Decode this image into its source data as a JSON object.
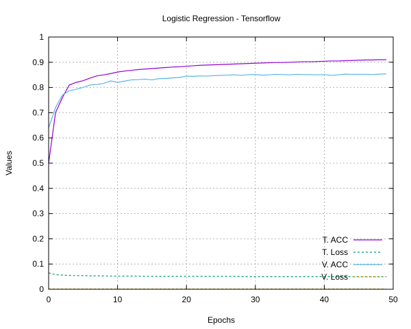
{
  "chart_data": {
    "type": "line",
    "title": "Logistic Regression - Tensorflow",
    "xlabel": "Epochs",
    "ylabel": "Values",
    "xlim": [
      0,
      50
    ],
    "ylim": [
      0,
      1
    ],
    "xticks": [
      0,
      10,
      20,
      30,
      40,
      50
    ],
    "yticks": [
      0,
      0.1,
      0.2,
      0.3,
      0.4,
      0.5,
      0.6,
      0.7,
      0.8,
      0.9,
      1
    ],
    "xtick_labels": [
      "0",
      "10",
      "20",
      "30",
      "40",
      "50"
    ],
    "ytick_labels": [
      "0",
      "0.1",
      "0.2",
      "0.3",
      "0.4",
      "0.5",
      "0.6",
      "0.7",
      "0.8",
      "0.9",
      "1"
    ],
    "grid": true,
    "legend_position": "bottom-right",
    "x": [
      0,
      1,
      2,
      3,
      4,
      5,
      6,
      7,
      8,
      9,
      10,
      11,
      12,
      13,
      14,
      15,
      16,
      17,
      18,
      19,
      20,
      21,
      22,
      23,
      24,
      25,
      26,
      27,
      28,
      29,
      30,
      31,
      32,
      33,
      34,
      35,
      36,
      37,
      38,
      39,
      40,
      41,
      42,
      43,
      44,
      45,
      46,
      47,
      48,
      49
    ],
    "series": [
      {
        "name": "T. ACC",
        "color": "#9400d3",
        "dash": "solid",
        "values": [
          0.5,
          0.7,
          0.76,
          0.81,
          0.82,
          0.827,
          0.837,
          0.846,
          0.85,
          0.855,
          0.861,
          0.865,
          0.868,
          0.871,
          0.873,
          0.875,
          0.877,
          0.879,
          0.881,
          0.882,
          0.884,
          0.886,
          0.888,
          0.889,
          0.89,
          0.891,
          0.892,
          0.893,
          0.894,
          0.895,
          0.896,
          0.897,
          0.898,
          0.899,
          0.899,
          0.9,
          0.901,
          0.902,
          0.902,
          0.903,
          0.904,
          0.905,
          0.905,
          0.906,
          0.907,
          0.908,
          0.909,
          0.909,
          0.91,
          0.91
        ]
      },
      {
        "name": "T. Loss",
        "color": "#009e73",
        "dash": "dashed",
        "values": [
          0.065,
          0.058,
          0.056,
          0.055,
          0.054,
          0.054,
          0.053,
          0.053,
          0.053,
          0.052,
          0.052,
          0.052,
          0.052,
          0.052,
          0.051,
          0.051,
          0.051,
          0.051,
          0.051,
          0.051,
          0.051,
          0.051,
          0.051,
          0.051,
          0.051,
          0.051,
          0.051,
          0.051,
          0.05,
          0.05,
          0.05,
          0.05,
          0.05,
          0.05,
          0.05,
          0.05,
          0.05,
          0.05,
          0.05,
          0.05,
          0.05,
          0.05,
          0.05,
          0.05,
          0.05,
          0.05,
          0.05,
          0.05,
          0.05,
          0.05
        ]
      },
      {
        "name": "V. ACC",
        "color": "#56b4e9",
        "dash": "solid",
        "values": [
          0.64,
          0.72,
          0.77,
          0.787,
          0.793,
          0.8,
          0.81,
          0.812,
          0.816,
          0.826,
          0.82,
          0.825,
          0.83,
          0.831,
          0.833,
          0.83,
          0.835,
          0.836,
          0.838,
          0.84,
          0.845,
          0.844,
          0.846,
          0.845,
          0.847,
          0.848,
          0.849,
          0.85,
          0.848,
          0.851,
          0.851,
          0.849,
          0.85,
          0.852,
          0.851,
          0.85,
          0.852,
          0.851,
          0.851,
          0.85,
          0.851,
          0.848,
          0.85,
          0.853,
          0.852,
          0.852,
          0.852,
          0.851,
          0.853,
          0.854
        ]
      },
      {
        "name": "V. Loss",
        "color": "#e69f00",
        "dash": "dashed",
        "values": [
          0.001,
          0.001,
          0.001,
          0.001,
          0.001,
          0.001,
          0.001,
          0.001,
          0.001,
          0.001,
          0.001,
          0.001,
          0.001,
          0.001,
          0.001,
          0.001,
          0.001,
          0.001,
          0.001,
          0.001,
          0.001,
          0.001,
          0.001,
          0.001,
          0.001,
          0.001,
          0.001,
          0.001,
          0.001,
          0.001,
          0.001,
          0.001,
          0.001,
          0.001,
          0.001,
          0.001,
          0.001,
          0.001,
          0.001,
          0.001,
          0.001,
          0.001,
          0.001,
          0.001,
          0.001,
          0.001,
          0.001,
          0.001,
          0.001,
          0.001
        ]
      }
    ]
  }
}
